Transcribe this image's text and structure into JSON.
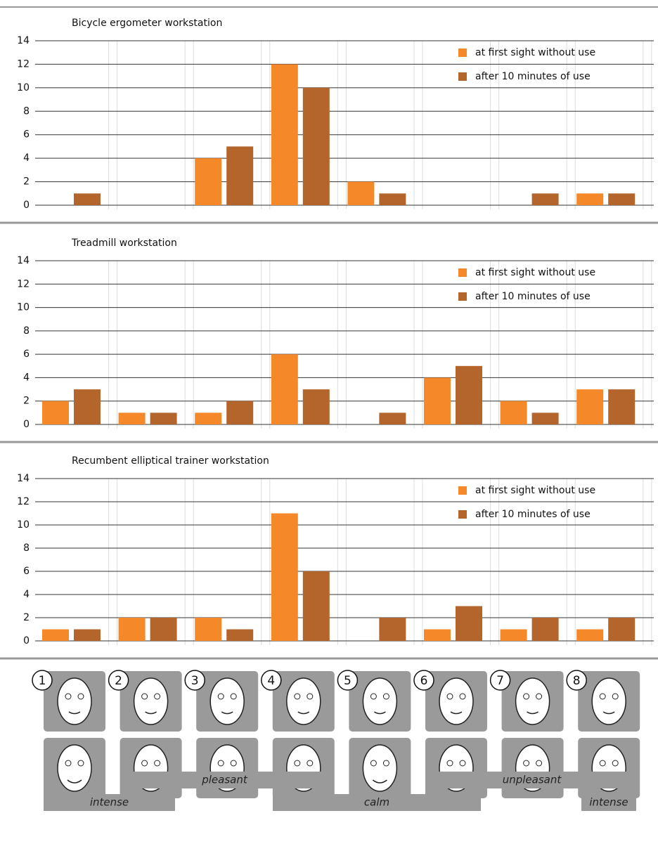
{
  "chart_data": [
    {
      "type": "bar",
      "title": "Bicycle ergometer workstation",
      "categories": [
        null,
        null,
        null,
        null,
        null,
        null,
        null,
        null
      ],
      "series": [
        {
          "name": "at first sight without use",
          "color": "#f5892a",
          "values": [
            0,
            0,
            4,
            12,
            2,
            0,
            0,
            1
          ]
        },
        {
          "name": "after 10 minutes of use",
          "color": "#b4652c",
          "values": [
            1,
            0,
            5,
            10,
            1,
            0,
            1,
            1
          ]
        }
      ],
      "ylim": [
        0,
        14
      ],
      "yticks": [
        0,
        2,
        4,
        6,
        8,
        10,
        12,
        14
      ],
      "grid": true,
      "legend": "upper right"
    },
    {
      "type": "bar",
      "title": "Treadmill workstation",
      "categories": [
        null,
        null,
        null,
        null,
        null,
        null,
        null,
        null
      ],
      "series": [
        {
          "name": "at first sight without use",
          "color": "#f5892a",
          "values": [
            2,
            1,
            1,
            6,
            0,
            4,
            2,
            3
          ]
        },
        {
          "name": "after 10 minutes of use",
          "color": "#b4652c",
          "values": [
            3,
            1,
            2,
            3,
            1,
            5,
            1,
            3
          ]
        }
      ],
      "ylim": [
        0,
        14
      ],
      "yticks": [
        0,
        2,
        4,
        6,
        8,
        10,
        12,
        14
      ],
      "grid": true,
      "legend": "upper right"
    },
    {
      "type": "bar",
      "title": "Recumbent elliptical trainer workstation",
      "categories": [
        null,
        null,
        null,
        null,
        null,
        null,
        null,
        null
      ],
      "series": [
        {
          "name": "at first sight without use",
          "color": "#f5892a",
          "values": [
            1,
            2,
            2,
            11,
            0,
            1,
            1,
            1
          ]
        },
        {
          "name": "after 10 minutes of use",
          "color": "#b4652c",
          "values": [
            1,
            2,
            1,
            6,
            2,
            3,
            2,
            2
          ]
        }
      ],
      "ylim": [
        0,
        14
      ],
      "yticks": [
        0,
        2,
        4,
        6,
        8,
        10,
        12,
        14
      ],
      "grid": true,
      "legend": "upper right"
    }
  ],
  "faces": {
    "numbers": [
      "1",
      "2",
      "3",
      "4",
      "5",
      "6",
      "7",
      "8"
    ]
  },
  "scale_labels": [
    "pleasant",
    "unpleasant",
    "intense",
    "calm",
    "intense"
  ]
}
